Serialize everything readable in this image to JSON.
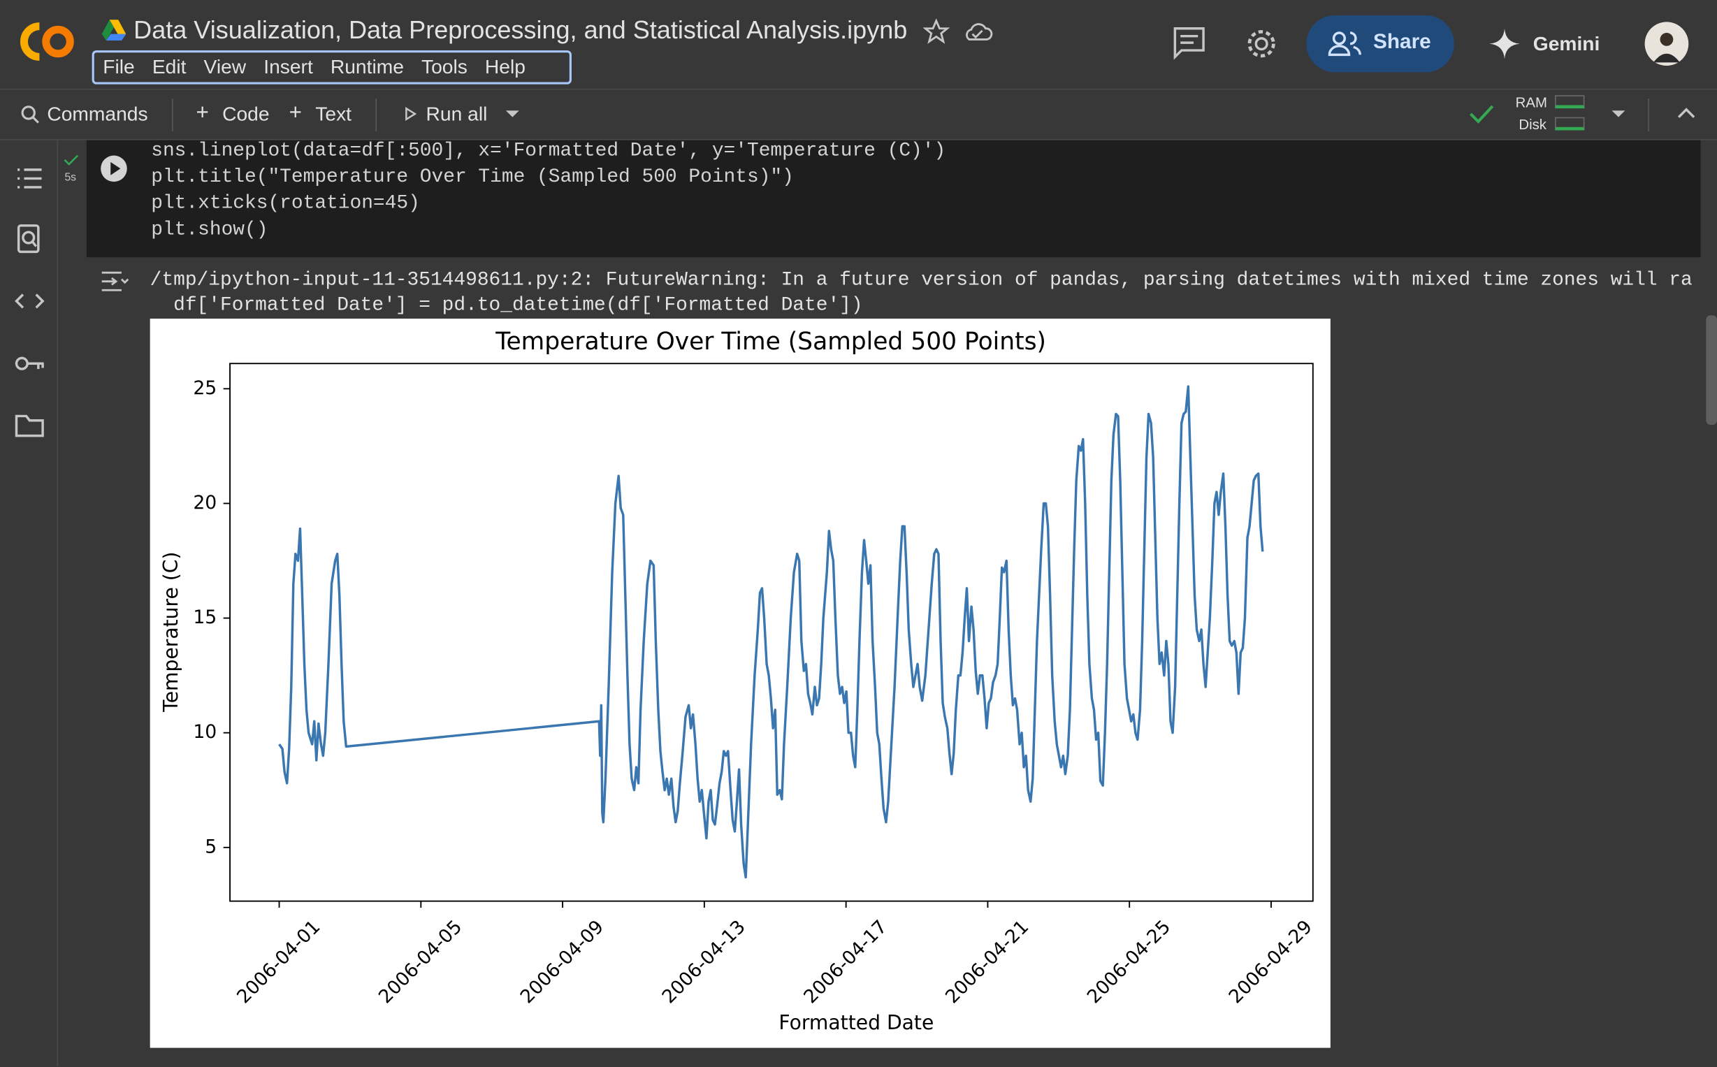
{
  "app": {
    "notebook_title": "Data Visualization, Data Preprocessing, and Statistical Analysis.ipynb",
    "menu": [
      "File",
      "Edit",
      "View",
      "Insert",
      "Runtime",
      "Tools",
      "Help"
    ],
    "share": "Share",
    "gemini": "Gemini"
  },
  "toolbar": {
    "commands": "Commands",
    "code": "Code",
    "text": "Text",
    "run_all": "Run all",
    "ram": "RAM",
    "disk": "Disk"
  },
  "cell": {
    "exec_time": "5s",
    "code": [
      "sns.lineplot(data=df[:500], x='Formatted Date', y='Temperature (C)')",
      "plt.title(\"Temperature Over Time (Sampled 500 Points)\")",
      "plt.xticks(rotation=45)",
      "plt.show()"
    ],
    "output": [
      "/tmp/ipython-input-11-3514498611.py:2: FutureWarning: In a future version of pandas, parsing datetimes with mixed time zones will ra",
      "  df['Formatted Date'] = pd.to_datetime(df['Formatted Date'])"
    ]
  },
  "chart_data": {
    "type": "line",
    "title": "Temperature Over Time (Sampled 500 Points)",
    "xlabel": "Formatted Date",
    "ylabel": "Temperature (C)",
    "color": "#3a76af",
    "xlim": [
      13237.61,
      13268.18
    ],
    "ylim": [
      2.66,
      26.1
    ],
    "xticks": [
      {
        "value": 13239,
        "label": "2006-04-01"
      },
      {
        "value": 13243,
        "label": "2006-04-05"
      },
      {
        "value": 13247,
        "label": "2006-04-09"
      },
      {
        "value": 13251,
        "label": "2006-04-13"
      },
      {
        "value": 13255,
        "label": "2006-04-17"
      },
      {
        "value": 13259,
        "label": "2006-04-21"
      },
      {
        "value": 13263,
        "label": "2006-04-25"
      },
      {
        "value": 13267,
        "label": "2006-04-29"
      }
    ],
    "yticks": [
      5,
      10,
      15,
      20,
      25
    ],
    "grid": false,
    "x": [
      13239.0,
      13239.09,
      13239.15,
      13239.22,
      13239.28,
      13239.34,
      13239.4,
      13239.46,
      13239.53,
      13239.59,
      13239.65,
      13239.71,
      13239.77,
      13239.83,
      13239.93,
      13239.99,
      13240.05,
      13240.11,
      13240.18,
      13240.24,
      13240.3,
      13240.39,
      13240.48,
      13240.58,
      13240.64,
      13240.7,
      13240.76,
      13240.82,
      13240.89,
      13248.03,
      13248.06,
      13248.09,
      13248.12,
      13248.15,
      13248.21,
      13248.3,
      13248.4,
      13248.49,
      13248.58,
      13248.64,
      13248.71,
      13248.77,
      13248.83,
      13248.89,
      13248.95,
      13249.02,
      13249.08,
      13249.14,
      13249.2,
      13249.29,
      13249.39,
      13249.48,
      13249.57,
      13249.63,
      13249.7,
      13249.76,
      13249.82,
      13249.88,
      13249.94,
      13250.0,
      13250.07,
      13250.13,
      13250.19,
      13250.25,
      13250.31,
      13250.38,
      13250.47,
      13250.56,
      13250.62,
      13250.68,
      13250.75,
      13250.81,
      13250.87,
      13250.93,
      13250.99,
      13251.06,
      13251.12,
      13251.18,
      13251.24,
      13251.3,
      13251.36,
      13251.43,
      13251.49,
      13251.55,
      13251.61,
      13251.67,
      13251.74,
      13251.8,
      13251.86,
      13251.92,
      13251.98,
      13252.04,
      13252.11,
      13252.17,
      13252.23,
      13252.32,
      13252.42,
      13252.51,
      13252.57,
      13252.63,
      13252.69,
      13252.76,
      13252.82,
      13252.88,
      13252.94,
      13253.0,
      13253.06,
      13253.13,
      13253.19,
      13253.25,
      13253.34,
      13253.44,
      13253.53,
      13253.62,
      13253.68,
      13253.74,
      13253.81,
      13253.87,
      13253.93,
      13253.99,
      13254.05,
      13254.12,
      13254.18,
      13254.24,
      13254.3,
      13254.36,
      13254.46,
      13254.52,
      13254.58,
      13254.64,
      13254.7,
      13254.77,
      13254.83,
      13254.89,
      13254.95,
      13255.01,
      13255.07,
      13255.14,
      13255.2,
      13255.26,
      13255.32,
      13255.38,
      13255.45,
      13255.51,
      13255.57,
      13255.63,
      13255.69,
      13255.75,
      13255.82,
      13255.88,
      13255.94,
      13256.0,
      13256.06,
      13256.13,
      13256.19,
      13256.28,
      13256.37,
      13256.47,
      13256.53,
      13256.59,
      13256.65,
      13256.71,
      13256.77,
      13256.84,
      13256.9,
      13256.96,
      13257.02,
      13257.08,
      13257.15,
      13257.24,
      13257.33,
      13257.42,
      13257.49,
      13257.55,
      13257.61,
      13257.67,
      13257.73,
      13257.79,
      13257.86,
      13257.92,
      13257.98,
      13258.04,
      13258.1,
      13258.17,
      13258.23,
      13258.29,
      13258.35,
      13258.41,
      13258.47,
      13258.54,
      13258.6,
      13258.66,
      13258.72,
      13258.78,
      13258.85,
      13258.91,
      13258.97,
      13259.03,
      13259.09,
      13259.15,
      13259.22,
      13259.28,
      13259.34,
      13259.4,
      13259.46,
      13259.53,
      13259.59,
      13259.65,
      13259.71,
      13259.77,
      13259.83,
      13259.9,
      13259.96,
      13260.02,
      13260.08,
      13260.14,
      13260.21,
      13260.27,
      13260.33,
      13260.39,
      13260.45,
      13260.51,
      13260.58,
      13260.64,
      13260.7,
      13260.76,
      13260.82,
      13260.89,
      13260.95,
      13261.01,
      13261.07,
      13261.13,
      13261.19,
      13261.26,
      13261.32,
      13261.38,
      13261.44,
      13261.5,
      13261.57,
      13261.63,
      13261.69,
      13261.75,
      13261.81,
      13261.87,
      13261.94,
      13262.0,
      13262.06,
      13262.12,
      13262.18,
      13262.25,
      13262.31,
      13262.37,
      13262.43,
      13262.49,
      13262.55,
      13262.62,
      13262.68,
      13262.74,
      13262.8,
      13262.86,
      13262.93,
      13262.99,
      13263.05,
      13263.11,
      13263.17,
      13263.23,
      13263.3,
      13263.36,
      13263.42,
      13263.48,
      13263.54,
      13263.61,
      13263.67,
      13263.73,
      13263.79,
      13263.85,
      13263.91,
      13263.98,
      13264.04,
      13264.1,
      13264.16,
      13264.22,
      13264.29,
      13264.35,
      13264.41,
      13264.47,
      13264.53,
      13264.59,
      13264.66,
      13264.72,
      13264.78,
      13264.84,
      13264.9,
      13264.97,
      13265.03,
      13265.09,
      13265.15,
      13265.21,
      13265.27,
      13265.34,
      13265.4,
      13265.46,
      13265.52,
      13265.58,
      13265.65,
      13265.71,
      13265.77,
      13265.83,
      13265.89,
      13265.96,
      13266.02,
      13266.08,
      13266.14,
      13266.2,
      13266.26,
      13266.33,
      13266.39,
      13266.45,
      13266.51,
      13266.57,
      13266.64,
      13266.7,
      13266.76
    ],
    "values": [
      9.5,
      9.3,
      8.3,
      7.8,
      9.3,
      12,
      16.5,
      17.8,
      17.5,
      18.9,
      16,
      13,
      11,
      10,
      9.5,
      10.5,
      8.8,
      10.4,
      9.5,
      9,
      10,
      13,
      16.5,
      17.5,
      17.8,
      16,
      13,
      10.5,
      9.4,
      10.5,
      9,
      11.2,
      6.5,
      6.1,
      8,
      12,
      17,
      20,
      21.2,
      19.8,
      19.5,
      16,
      12.5,
      9.5,
      8,
      7.5,
      8.5,
      7.8,
      11,
      14,
      16.5,
      17.5,
      17.3,
      14,
      11,
      9.2,
      8.3,
      7.5,
      8,
      7.3,
      8,
      6.8,
      6.1,
      6.6,
      7.8,
      9,
      10.7,
      11.2,
      10.2,
      10.8,
      9.5,
      8,
      7,
      7.5,
      6.5,
      5.4,
      7,
      7.5,
      6.2,
      6,
      6.8,
      7.8,
      8.3,
      9.2,
      9,
      9.2,
      7.5,
      6.2,
      5.7,
      7,
      8.4,
      6,
      4.3,
      3.7,
      6,
      9.5,
      12.5,
      14.5,
      16.1,
      16.3,
      15,
      13,
      12.5,
      11.5,
      10.2,
      11,
      7.3,
      7.5,
      7.1,
      9.5,
      12,
      15,
      17,
      17.8,
      17.5,
      14,
      12.7,
      13,
      11.7,
      11.3,
      10.8,
      12,
      11.2,
      11.5,
      13,
      15,
      17,
      18.8,
      18,
      17.5,
      15,
      12.5,
      11.7,
      12,
      11.3,
      11.8,
      10,
      10,
      9,
      8.5,
      11,
      14,
      17,
      18.4,
      17.5,
      16.5,
      17.3,
      14,
      12,
      10,
      9.5,
      8,
      6.7,
      6.1,
      7,
      9.5,
      12,
      15.5,
      17.5,
      19,
      19,
      17,
      14.5,
      13,
      12,
      12.5,
      13,
      12,
      11.4,
      12.5,
      14.5,
      16.5,
      17.8,
      18,
      17.8,
      14,
      11.3,
      10.7,
      10.2,
      9.1,
      8.2,
      9.1,
      11,
      12.5,
      12.5,
      13.5,
      15,
      16.3,
      14,
      15.5,
      14.5,
      12.7,
      11.7,
      12.5,
      12.5,
      11.5,
      10.2,
      11.3,
      11.5,
      12.2,
      12.5,
      13,
      15,
      17.2,
      17,
      17.5,
      14.5,
      12.5,
      11.2,
      11.5,
      11,
      9.5,
      10,
      8.5,
      9,
      7.5,
      7,
      8,
      11,
      14,
      16,
      18,
      20,
      20,
      19,
      16,
      12.5,
      10.5,
      9.5,
      9,
      8.5,
      9,
      8.2,
      9,
      11,
      14.5,
      18,
      21,
      22.5,
      22.3,
      22.8,
      20,
      16,
      13,
      11.5,
      11,
      9.7,
      10,
      7.9,
      7.7,
      10,
      13,
      17,
      21,
      23,
      23.9,
      23.8,
      21,
      17,
      13,
      11.5,
      11,
      10.5,
      10.8,
      10,
      9.7,
      11,
      14,
      18,
      22,
      23.9,
      23.5,
      22,
      18.5,
      15,
      13,
      13.5,
      12.5,
      14,
      13,
      10.5,
      10,
      12,
      16,
      20,
      23.5,
      23.9,
      24,
      25.1,
      22,
      19,
      16,
      14.5,
      14,
      14.5,
      13,
      12,
      13.5,
      15,
      17.5,
      20,
      20.5,
      19.5,
      20.5,
      21.3,
      19,
      16,
      14,
      13.8,
      14,
      13.5,
      11.7,
      13.5,
      13.7,
      15,
      18.5,
      19,
      20,
      21,
      21.2,
      21.3,
      19,
      17.9
    ]
  }
}
